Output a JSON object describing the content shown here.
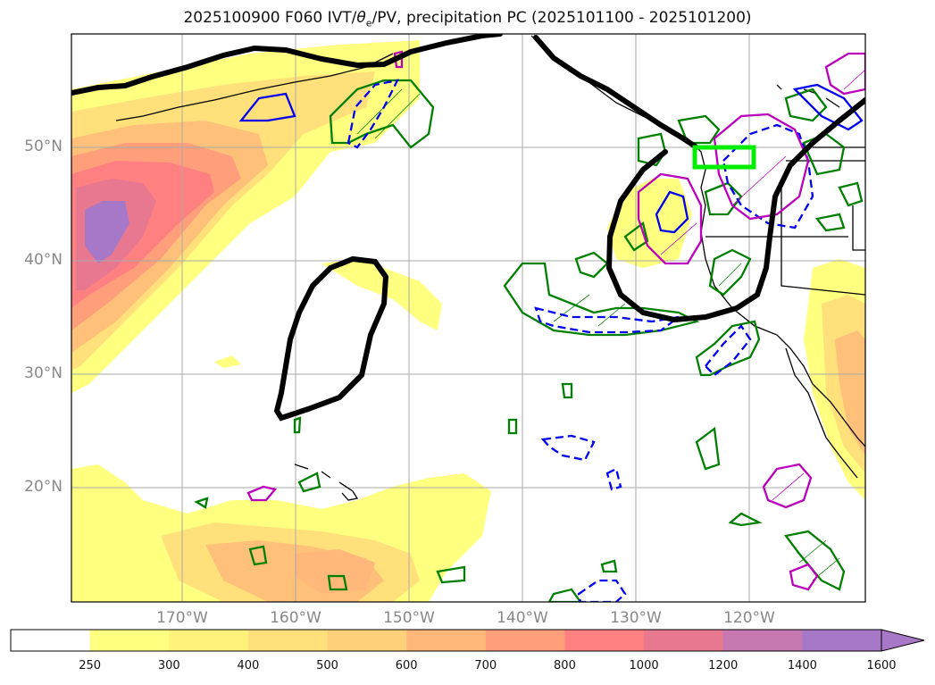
{
  "title_main": "2025100900 F060 IVT/",
  "title_theta": "θ",
  "title_sub": "e",
  "title_rest": "/PV, precipitation PC (2025101100 - 2025101200)",
  "lat_labels": [
    "50°N",
    "40°N",
    "30°N",
    "20°N"
  ],
  "lon_labels": [
    "170°W",
    "160°W",
    "150°W",
    "140°W",
    "130°W",
    "120°W"
  ],
  "map_extent": {
    "lon_min": -180,
    "lon_max": -110,
    "lat_min": 10,
    "lat_max": 60
  },
  "colorbar": {
    "levels": [
      "250",
      "300",
      "400",
      "500",
      "600",
      "700",
      "800",
      "1000",
      "1200",
      "1400",
      "1600"
    ],
    "colors": [
      "#ffffff",
      "#ffff80",
      "#fff27a",
      "#ffe07a",
      "#ffd07a",
      "#ffb87a",
      "#ff9e7a",
      "#ff8080",
      "#e87890",
      "#c878b0",
      "#a878c8"
    ],
    "extend": "max"
  },
  "overlay_colors": {
    "ivt_outline": "#000000",
    "box": "#00ee00",
    "green": "#008000",
    "blue": "#0000ee",
    "magenta": "#bb00bb"
  }
}
